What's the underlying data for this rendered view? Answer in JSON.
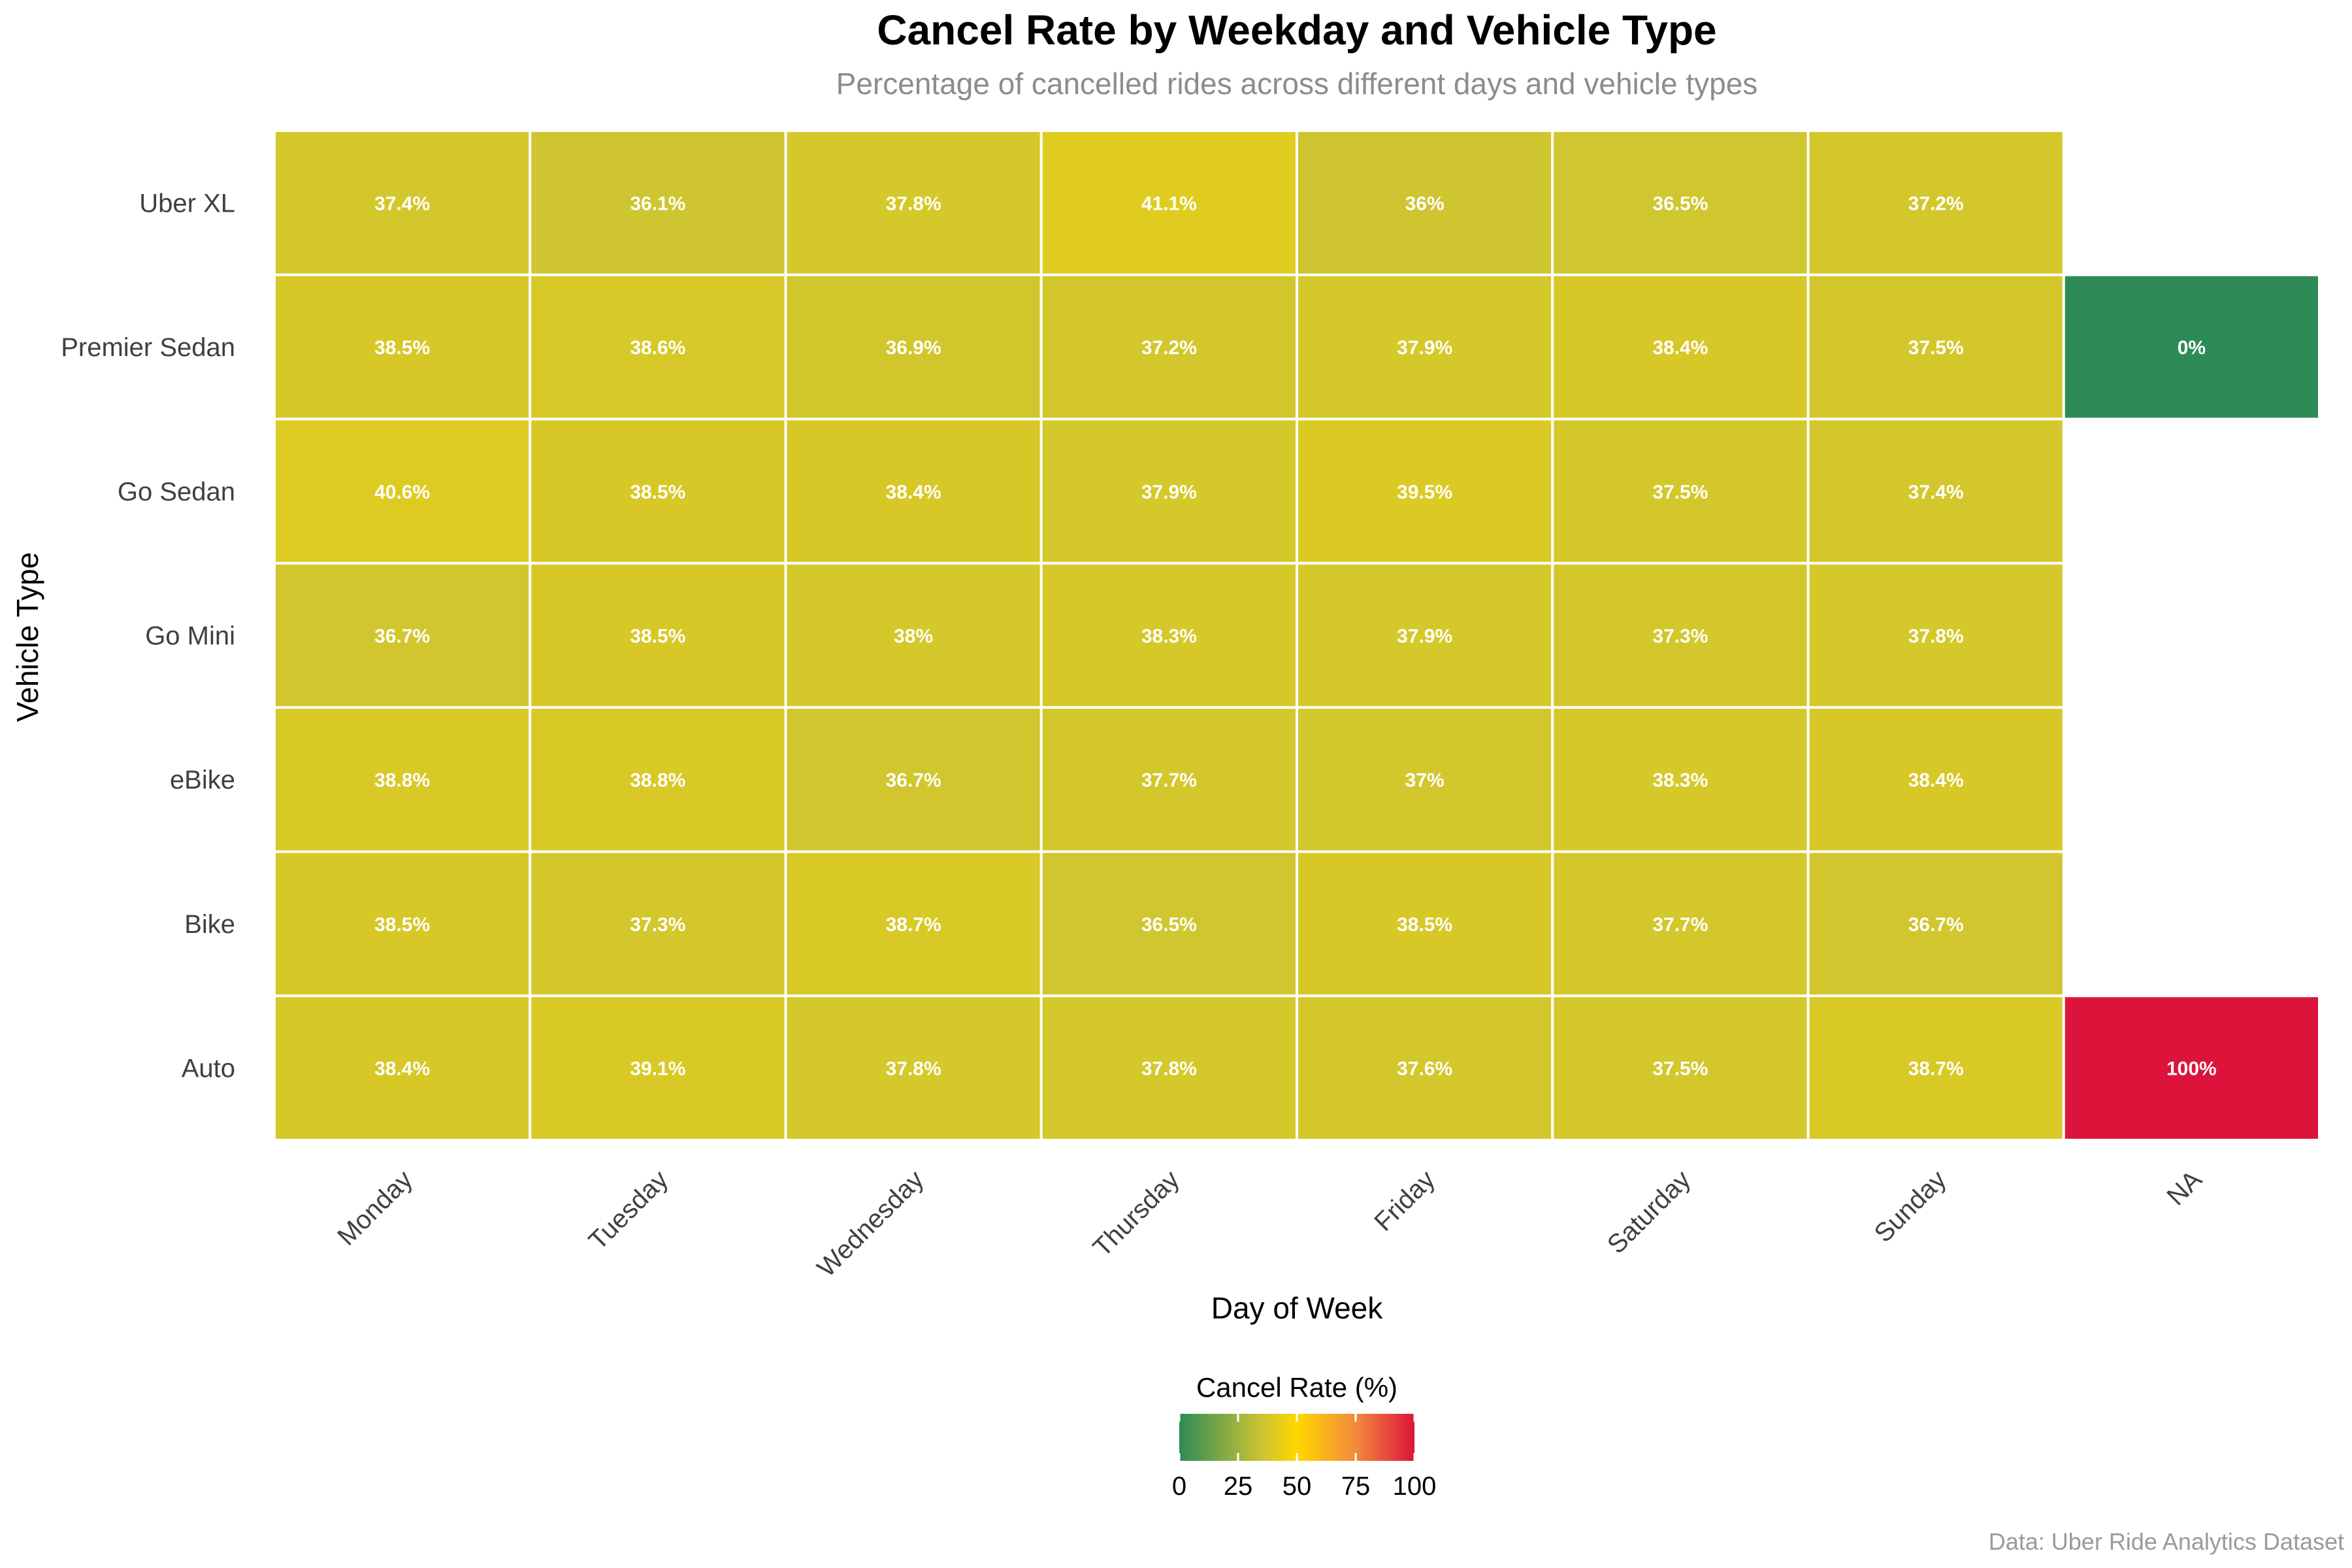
{
  "chart_data": {
    "type": "heatmap",
    "title": "Cancel Rate by Weekday and Vehicle Type",
    "subtitle": "Percentage of cancelled rides across different days and vehicle types",
    "xlabel": "Day of Week",
    "ylabel": "Vehicle Type",
    "caption": "Data: Uber Ride Analytics Dataset",
    "x_categories": [
      "Monday",
      "Tuesday",
      "Wednesday",
      "Thursday",
      "Friday",
      "Saturday",
      "Sunday",
      "NA"
    ],
    "y_categories": [
      "Uber XL",
      "Premier Sedan",
      "Go Sedan",
      "Go Mini",
      "eBike",
      "Bike",
      "Auto"
    ],
    "values": [
      [
        37.4,
        36.1,
        37.8,
        41.1,
        36.0,
        36.5,
        37.2,
        null
      ],
      [
        38.5,
        38.6,
        36.9,
        37.2,
        37.9,
        38.4,
        37.5,
        0
      ],
      [
        40.6,
        38.5,
        38.4,
        37.9,
        39.5,
        37.5,
        37.4,
        null
      ],
      [
        36.7,
        38.5,
        38.0,
        38.3,
        37.9,
        37.3,
        37.8,
        null
      ],
      [
        38.8,
        38.8,
        36.7,
        37.7,
        37.0,
        38.3,
        38.4,
        null
      ],
      [
        38.5,
        37.3,
        38.7,
        36.5,
        38.5,
        37.7,
        36.7,
        null
      ],
      [
        38.4,
        39.1,
        37.8,
        37.8,
        37.6,
        37.5,
        38.7,
        100
      ]
    ],
    "cell_labels": [
      [
        "37.4%",
        "36.1%",
        "37.8%",
        "41.1%",
        "36%",
        "36.5%",
        "37.2%",
        null
      ],
      [
        "38.5%",
        "38.6%",
        "36.9%",
        "37.2%",
        "37.9%",
        "38.4%",
        "37.5%",
        "0%"
      ],
      [
        "40.6%",
        "38.5%",
        "38.4%",
        "37.9%",
        "39.5%",
        "37.5%",
        "37.4%",
        null
      ],
      [
        "36.7%",
        "38.5%",
        "38%",
        "38.3%",
        "37.9%",
        "37.3%",
        "37.8%",
        null
      ],
      [
        "38.8%",
        "38.8%",
        "36.7%",
        "37.7%",
        "37%",
        "38.3%",
        "38.4%",
        null
      ],
      [
        "38.5%",
        "37.3%",
        "38.7%",
        "36.5%",
        "38.5%",
        "37.7%",
        "36.7%",
        null
      ],
      [
        "38.4%",
        "39.1%",
        "37.8%",
        "37.8%",
        "37.6%",
        "37.5%",
        "38.7%",
        "100%"
      ]
    ],
    "color_scale": {
      "title": "Cancel Rate (%)",
      "range": [
        0,
        100
      ],
      "ticks": [
        0,
        25,
        50,
        75,
        100
      ],
      "stops": [
        {
          "value": 0,
          "color": "#2e8b57"
        },
        {
          "value": 35,
          "color": "#cbc434"
        },
        {
          "value": 50,
          "color": "#ffd700"
        },
        {
          "value": 75,
          "color": "#f28a3c"
        },
        {
          "value": 100,
          "color": "#dc143c"
        }
      ]
    },
    "legend_placement": "bottom",
    "grid": false,
    "cell_border_color": "#ffffff"
  }
}
